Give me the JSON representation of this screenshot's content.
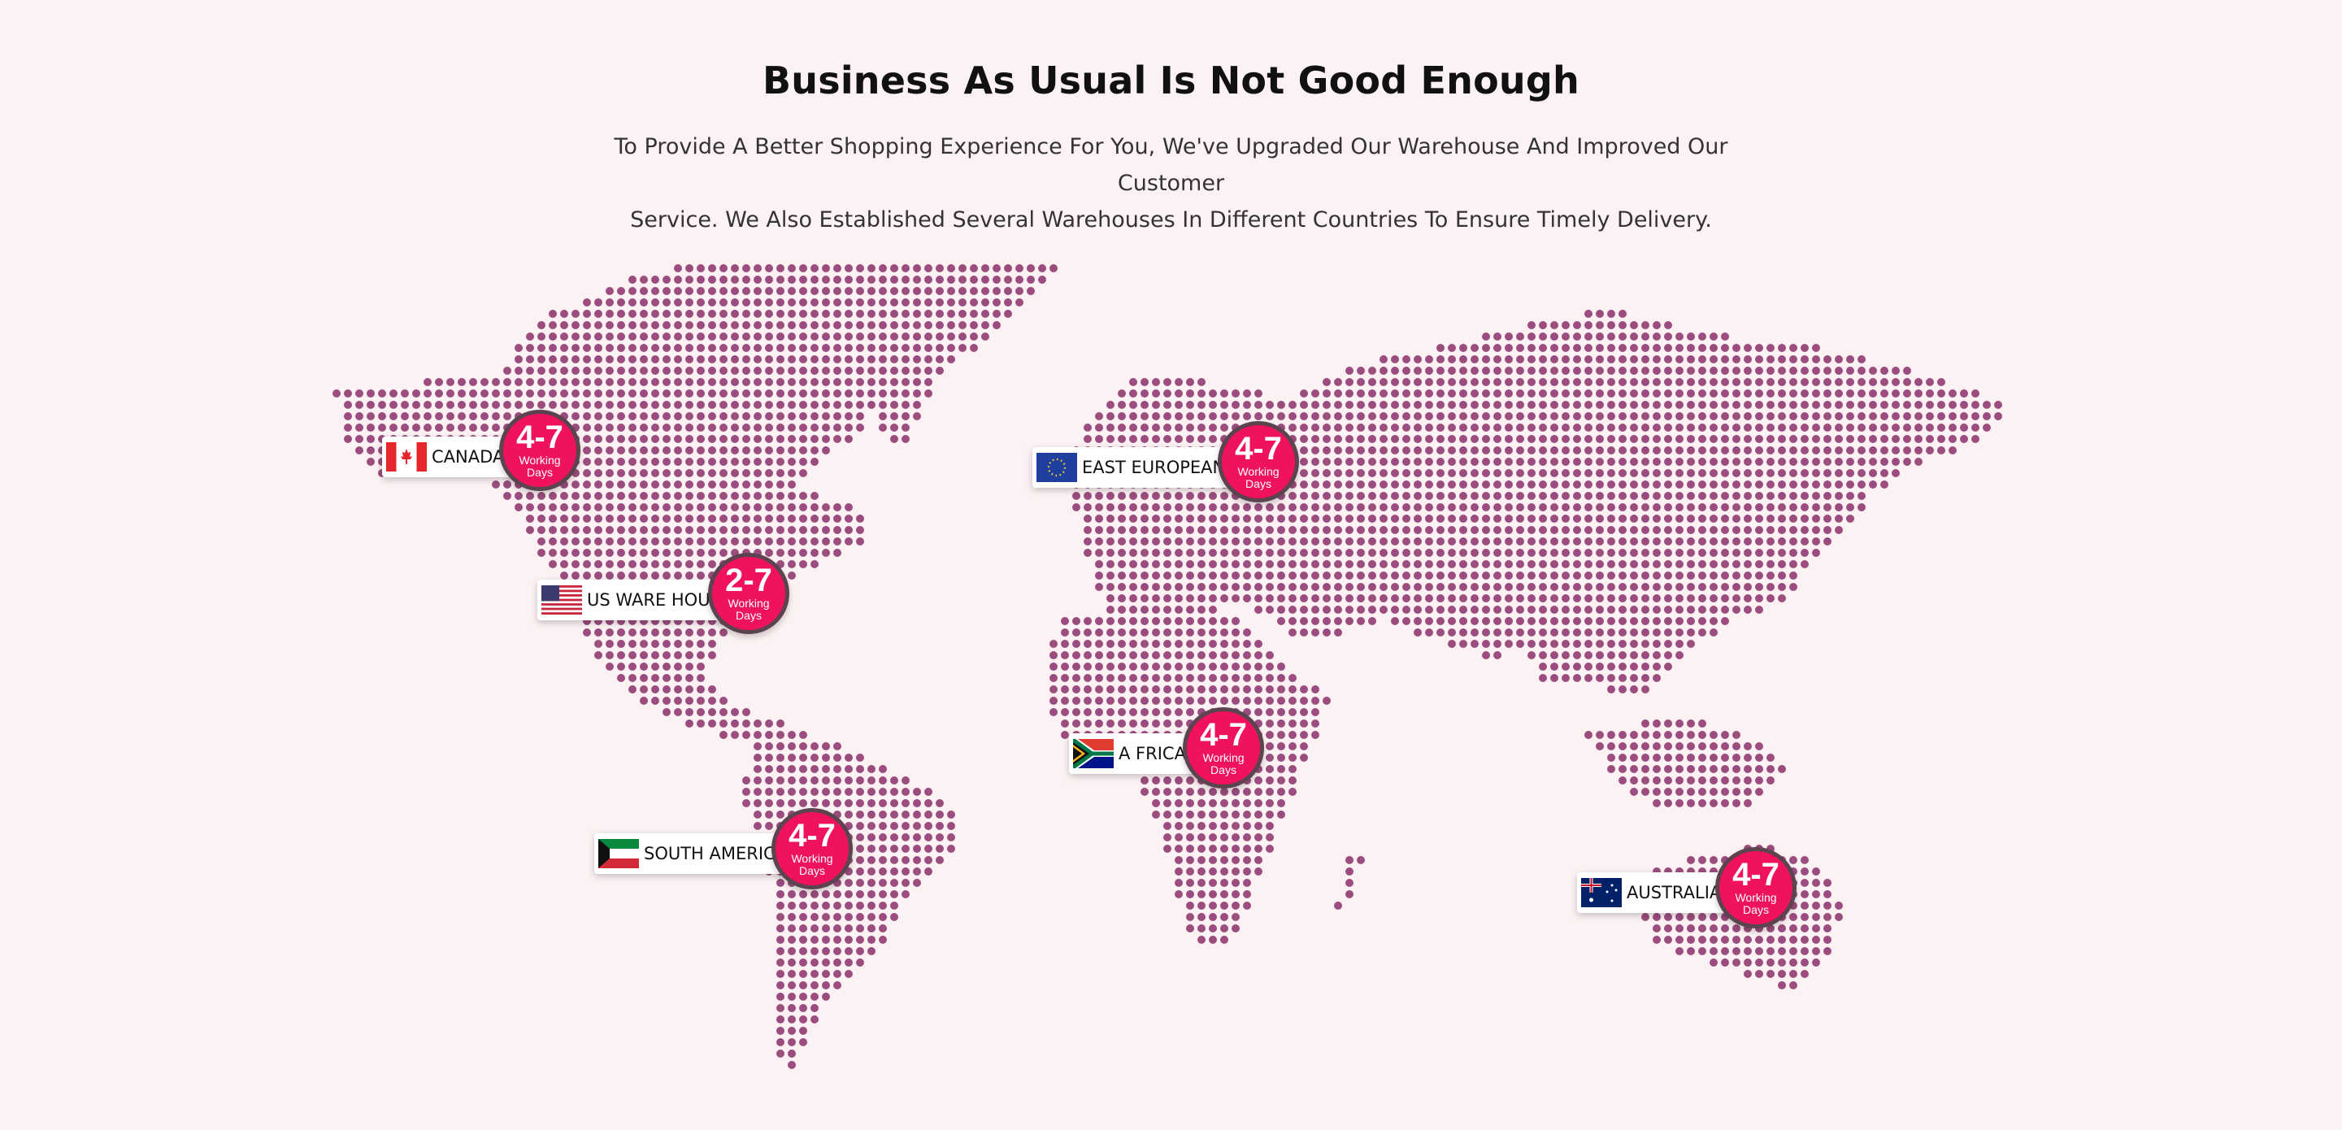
{
  "header": {
    "title": "Business As Usual Is Not Good Enough",
    "subtitle_line1": "To Provide A Better Shopping Experience For You, We've Upgraded Our Warehouse And Improved Our Customer",
    "subtitle_line2": "Service. We Also Established Several Warehouses In Different Countries To Ensure Timely Delivery."
  },
  "colors": {
    "background": "#fdf2f3",
    "map_dot": "#9b4d7f",
    "badge_circle": "#f0125c",
    "badge_ring": "#5b4350"
  },
  "warehouses": [
    {
      "name": "CANADA",
      "days": "4-7",
      "unit_line1": "Working",
      "unit_line2": "Days",
      "flag_icon": "canada-flag-icon"
    },
    {
      "name": "US WARE HOUS",
      "days": "2-7",
      "unit_line1": "Working",
      "unit_line2": "Days",
      "flag_icon": "usa-flag-icon"
    },
    {
      "name": "SOUTH AMERICA",
      "days": "4-7",
      "unit_line1": "Working",
      "unit_line2": "Days",
      "flag_icon": "kuwait-flag-icon"
    },
    {
      "name": "EAST EUROPEAN",
      "days": "4-7",
      "unit_line1": "Working",
      "unit_line2": "Days",
      "flag_icon": "eu-flag-icon"
    },
    {
      "name": "A FRICA",
      "days": "4-7",
      "unit_line1": "Working",
      "unit_line2": "Days",
      "flag_icon": "south-africa-flag-icon"
    },
    {
      "name": "AUSTRALIA",
      "days": "4-7",
      "unit_line1": "Working",
      "unit_line2": "Days",
      "flag_icon": "australia-flag-icon"
    }
  ]
}
